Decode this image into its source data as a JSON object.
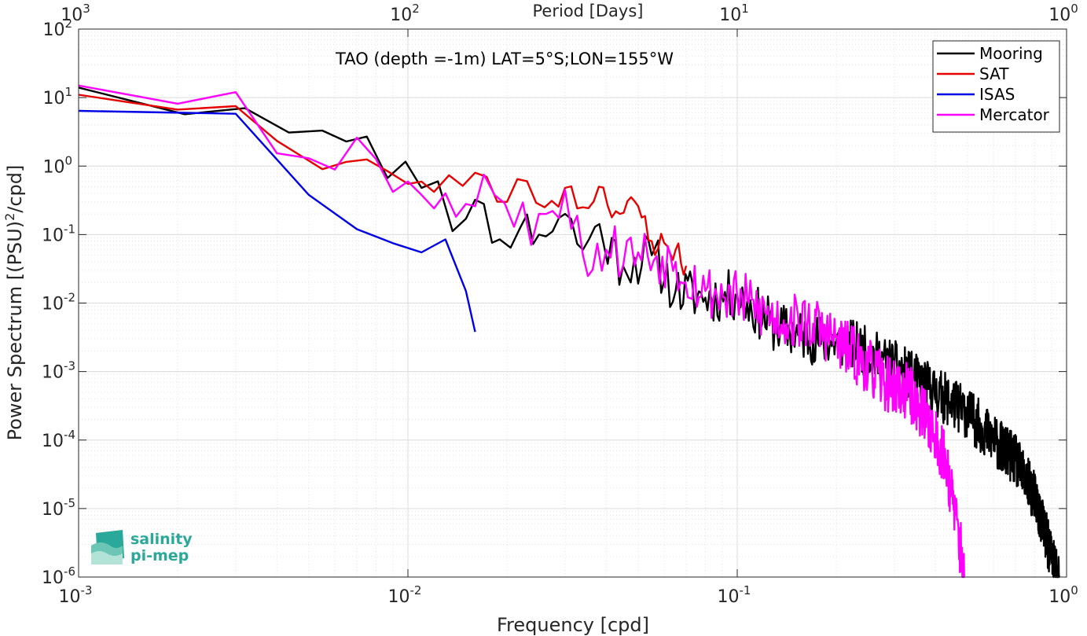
{
  "chart_data": {
    "type": "line",
    "title": "TAO (depth =-1m) LAT=5°S;LON=155°W",
    "xlabel": "Frequency [cpd]",
    "ylabel_main": "Power Spectrum [(PSU)",
    "ylabel_sup": "2",
    "ylabel_tail": "/cpd]",
    "top_xlabel": "Period [Days]",
    "xscale": "log",
    "yscale": "log",
    "xlim": [
      0.001,
      1
    ],
    "ylim": [
      1e-06,
      100
    ],
    "grid": true,
    "legend_position": "top-right",
    "x_ticks": [
      {
        "value": 0.001,
        "base": "10",
        "exp": "-3"
      },
      {
        "value": 0.01,
        "base": "10",
        "exp": "-2"
      },
      {
        "value": 0.1,
        "base": "10",
        "exp": "-1"
      },
      {
        "value": 1,
        "base": "10",
        "exp": "0"
      }
    ],
    "y_ticks": [
      {
        "value": 100,
        "base": "10",
        "exp": "2"
      },
      {
        "value": 10,
        "base": "10",
        "exp": "1"
      },
      {
        "value": 1,
        "base": "10",
        "exp": "0"
      },
      {
        "value": 0.1,
        "base": "10",
        "exp": "-1"
      },
      {
        "value": 0.01,
        "base": "10",
        "exp": "-2"
      },
      {
        "value": 0.001,
        "base": "10",
        "exp": "-3"
      },
      {
        "value": 0.0001,
        "base": "10",
        "exp": "-4"
      },
      {
        "value": 1e-05,
        "base": "10",
        "exp": "-5"
      },
      {
        "value": 1e-06,
        "base": "10",
        "exp": "-6"
      }
    ],
    "top_ticks": [
      {
        "period": 1000,
        "base": "10",
        "exp": "3"
      },
      {
        "period": 100,
        "base": "10",
        "exp": "2"
      },
      {
        "period": 10,
        "base": "10",
        "exp": "1"
      },
      {
        "period": 1,
        "base": "10",
        "exp": "0"
      }
    ],
    "series": [
      {
        "name": "Mooring",
        "color": "#000000",
        "seed": 11,
        "amp": 0.38,
        "anchors": [
          [
            0.001,
            14
          ],
          [
            0.0032,
            7
          ],
          [
            0.0055,
            3.3
          ],
          [
            0.0075,
            2.7
          ],
          [
            0.011,
            0.48
          ],
          [
            0.015,
            0.17
          ],
          [
            0.017,
            0.28
          ],
          [
            0.019,
            0.085
          ],
          [
            0.022,
            0.13
          ],
          [
            0.025,
            0.1
          ],
          [
            0.03,
            0.2
          ],
          [
            0.034,
            0.06
          ],
          [
            0.037,
            0.13
          ],
          [
            0.045,
            0.035
          ],
          [
            0.055,
            0.05
          ],
          [
            0.065,
            0.015
          ],
          [
            0.08,
            0.012
          ],
          [
            0.1,
            0.013
          ],
          [
            0.13,
            0.0045
          ],
          [
            0.17,
            0.003
          ],
          [
            0.22,
            0.0025
          ],
          [
            0.3,
            0.0012
          ],
          [
            0.4,
            0.0005
          ],
          [
            0.5,
            0.00025
          ],
          [
            0.6,
            0.0001
          ],
          [
            0.7,
            5e-05
          ],
          [
            0.8,
            1.5e-05
          ],
          [
            0.9,
            2e-06
          ],
          [
            0.95,
            1e-06
          ]
        ]
      },
      {
        "name": "SAT",
        "color": "#e60000",
        "seed": 23,
        "amp": 0.22,
        "anchors": [
          [
            0.001,
            11
          ],
          [
            0.003,
            7.5
          ],
          [
            0.005,
            1.2
          ],
          [
            0.0055,
            0.9
          ],
          [
            0.0075,
            1.25
          ],
          [
            0.01,
            0.55
          ],
          [
            0.012,
            0.42
          ],
          [
            0.016,
            0.8
          ],
          [
            0.02,
            0.3
          ],
          [
            0.023,
            0.6
          ],
          [
            0.026,
            0.25
          ],
          [
            0.03,
            0.48
          ],
          [
            0.034,
            0.25
          ],
          [
            0.038,
            0.5
          ],
          [
            0.044,
            0.2
          ],
          [
            0.05,
            0.26
          ],
          [
            0.055,
            0.08
          ],
          [
            0.065,
            0.06
          ],
          [
            0.07,
            0.035
          ]
        ]
      },
      {
        "name": "ISAS",
        "color": "#0000e6",
        "seed": 37,
        "amp": 0,
        "anchors": [
          [
            0.001,
            6.4
          ],
          [
            0.003,
            5.8
          ],
          [
            0.005,
            0.38
          ],
          [
            0.007,
            0.12
          ],
          [
            0.009,
            0.075
          ],
          [
            0.011,
            0.055
          ],
          [
            0.013,
            0.085
          ],
          [
            0.015,
            0.015
          ],
          [
            0.016,
            0.0038
          ]
        ]
      },
      {
        "name": "Mercator",
        "color": "#ff00ff",
        "seed": 53,
        "amp": 0.42,
        "anchors": [
          [
            0.001,
            15
          ],
          [
            0.003,
            12
          ],
          [
            0.005,
            1.3
          ],
          [
            0.007,
            2.6
          ],
          [
            0.009,
            0.42
          ],
          [
            0.011,
            0.38
          ],
          [
            0.013,
            0.4
          ],
          [
            0.015,
            0.28
          ],
          [
            0.017,
            0.75
          ],
          [
            0.021,
            0.13
          ],
          [
            0.025,
            0.2
          ],
          [
            0.03,
            0.45
          ],
          [
            0.034,
            0.05
          ],
          [
            0.04,
            0.06
          ],
          [
            0.05,
            0.055
          ],
          [
            0.065,
            0.04
          ],
          [
            0.08,
            0.015
          ],
          [
            0.1,
            0.012
          ],
          [
            0.13,
            0.006
          ],
          [
            0.17,
            0.005
          ],
          [
            0.22,
            0.002
          ],
          [
            0.28,
            0.0007
          ],
          [
            0.33,
            0.0005
          ],
          [
            0.38,
            0.0002
          ],
          [
            0.43,
            5e-05
          ],
          [
            0.46,
            8e-06
          ],
          [
            0.48,
            2e-06
          ],
          [
            0.49,
            1e-06
          ]
        ]
      }
    ]
  },
  "logo": {
    "line1": "salinity",
    "line2": "pi-mep",
    "color": "#2aa89a"
  }
}
